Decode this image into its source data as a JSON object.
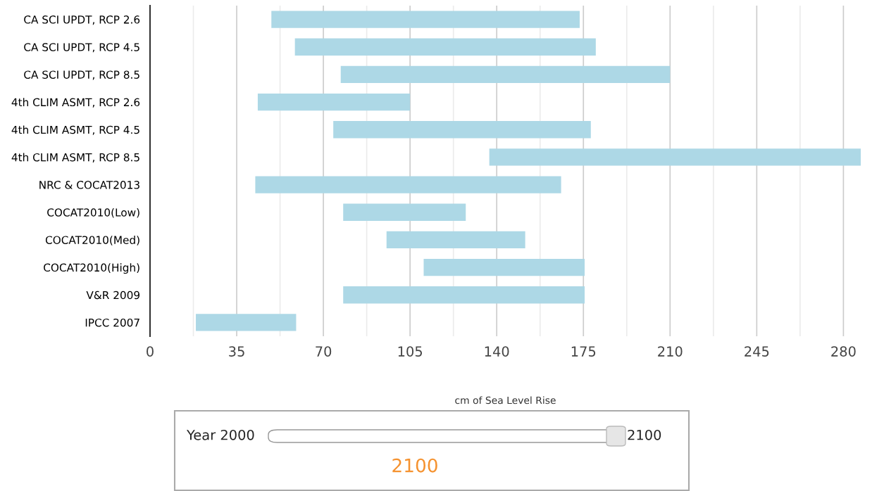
{
  "chart_data": {
    "type": "bar",
    "orientation": "horizontal",
    "categories": [
      "CA SCI UPDT, RCP 2.6",
      "CA SCI UPDT, RCP 4.5",
      "CA SCI UPDT, RCP 8.5",
      "4th CLIM ASMT, RCP 2.6",
      "4th CLIM ASMT, RCP 4.5",
      "4th CLIM ASMT, RCP 8.5",
      "NRC & COCAT2013",
      "COCAT2010(Low)",
      "COCAT2010(Med)",
      "COCAT2010(High)",
      "V&R 2009",
      "IPCC 2007"
    ],
    "base": [
      49,
      58.5,
      77,
      43.5,
      74,
      137,
      42.5,
      78,
      95.5,
      110.5,
      78,
      18.5
    ],
    "values": [
      124.5,
      121.5,
      133,
      61.5,
      104,
      150,
      123.5,
      49.5,
      56,
      65,
      97.5,
      40.5
    ],
    "color": "#add8e6",
    "xlabel": "cm of Sea Level Rise",
    "xlim": [
      0,
      287
    ],
    "xticks": [
      0,
      {
        "value": 17.5,
        "label": null
      },
      35,
      {
        "value": 52.5,
        "label": null
      },
      70,
      {
        "value": 87.5,
        "label": null
      },
      105,
      {
        "value": 122.5,
        "label": null
      },
      140,
      {
        "value": 157.5,
        "label": null
      },
      175,
      {
        "value": 192.5,
        "label": null
      },
      210,
      {
        "value": 227.5,
        "label": null
      },
      245,
      {
        "value": 262.5,
        "label": null
      },
      280
    ],
    "grid": "x",
    "annotations": [
      "Year 2000",
      "2100",
      "2100"
    ]
  }
}
